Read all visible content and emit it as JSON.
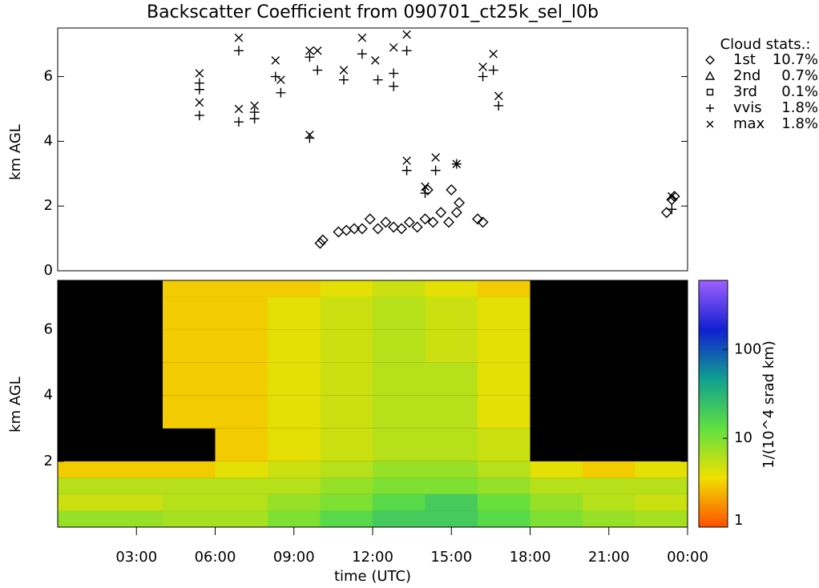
{
  "chart_data": [
    {
      "type": "scatter",
      "title": "Backscatter Coefficient from 090701_ct25k_sel_l0b",
      "ylabel": "km AGL",
      "xlim": [
        0,
        24
      ],
      "ylim": [
        0,
        7.5
      ],
      "yticks": [
        0,
        2,
        4,
        6
      ],
      "legend_title": "Cloud stats.:",
      "legend": "upper right",
      "color": "#000000",
      "series": [
        {
          "name": "1st",
          "marker": "diamond",
          "share": 10.7,
          "share_label": "10.7%",
          "x": [
            10,
            10.1,
            10.7,
            11,
            11.3,
            11.6,
            11.9,
            12.2,
            12.5,
            12.8,
            13.1,
            13.4,
            13.7,
            14,
            14.1,
            14.3,
            14.6,
            14.9,
            15,
            15.2,
            15.3,
            16,
            16.2,
            23.2,
            23.4,
            23.5
          ],
          "values": [
            0.85,
            0.95,
            1.2,
            1.25,
            1.3,
            1.3,
            1.6,
            1.3,
            1.5,
            1.35,
            1.3,
            1.5,
            1.35,
            1.6,
            2.5,
            1.5,
            1.8,
            1.5,
            2.5,
            1.8,
            2.1,
            1.6,
            1.5,
            1.8,
            2.2,
            2.3
          ]
        },
        {
          "name": "2nd",
          "marker": "triangle",
          "share": 0.7,
          "share_label": "0.7%",
          "x": [],
          "values": []
        },
        {
          "name": "3rd",
          "marker": "square",
          "share": 0.1,
          "share_label": "0.1%",
          "x": [],
          "values": []
        },
        {
          "name": "vvis",
          "marker": "plus",
          "share": 1.8,
          "share_label": "1.8%",
          "x": [
            5.4,
            5.4,
            5.4,
            6.9,
            6.9,
            7.5,
            7.5,
            8.3,
            8.5,
            9.6,
            9.6,
            9.9,
            10.9,
            11.6,
            12.2,
            12.8,
            12.8,
            13.3,
            13.3,
            14.0,
            14.4,
            15.2,
            16.2,
            16.6,
            16.8,
            23.4
          ],
          "values": [
            4.8,
            5.6,
            5.8,
            4.6,
            6.8,
            4.7,
            4.9,
            6,
            5.5,
            4.1,
            6.6,
            6.2,
            5.9,
            6.7,
            5.9,
            5.7,
            6.1,
            3.1,
            6.8,
            2.4,
            3.1,
            3.3,
            6.0,
            6.2,
            5.1,
            1.9
          ]
        },
        {
          "name": "max",
          "marker": "cross",
          "share": 1.8,
          "share_label": "1.8%",
          "x": [
            5.4,
            5.4,
            6.9,
            6.9,
            7.5,
            8.3,
            8.5,
            9.6,
            9.6,
            9.9,
            10.9,
            11.6,
            12.1,
            12.8,
            13.3,
            13.3,
            14.0,
            14.4,
            15.2,
            16.2,
            16.6,
            16.8,
            23.4
          ],
          "values": [
            6.1,
            5.2,
            7.2,
            5.0,
            5.1,
            6.5,
            5.9,
            6.8,
            4.2,
            6.8,
            6.2,
            7.2,
            6.5,
            6.9,
            7.3,
            3.4,
            2.6,
            3.5,
            3.3,
            6.3,
            6.7,
            5.4,
            2.3
          ]
        }
      ]
    },
    {
      "type": "heatmap",
      "ylabel": "km AGL",
      "xlabel": "time (UTC)",
      "xlim": [
        0,
        24
      ],
      "xticks": [
        {
          "value": 3,
          "label": "03:00"
        },
        {
          "value": 6,
          "label": "06:00"
        },
        {
          "value": 9,
          "label": "09:00"
        },
        {
          "value": 12,
          "label": "12:00"
        },
        {
          "value": 15,
          "label": "15:00"
        },
        {
          "value": 18,
          "label": "18:00"
        },
        {
          "value": 21,
          "label": "21:00"
        },
        {
          "value": 24,
          "label": "00:00"
        }
      ],
      "ylim": [
        0,
        7.5
      ],
      "yticks": [
        2,
        4,
        6
      ],
      "xbins": [
        0,
        2,
        4,
        6,
        8,
        10,
        12,
        14,
        16,
        18,
        20,
        22,
        24
      ],
      "ybins": [
        0,
        0.5,
        1,
        1.5,
        2,
        3,
        4,
        5,
        6,
        7,
        7.5
      ],
      "z": [
        [
          8,
          8,
          7,
          7,
          10,
          15,
          20,
          20,
          15,
          10,
          8,
          7
        ],
        [
          5,
          5,
          6,
          6,
          8,
          10,
          15,
          20,
          12,
          8,
          6,
          5
        ],
        [
          6,
          6,
          6,
          6,
          6,
          8,
          10,
          10,
          8,
          6,
          6,
          6
        ],
        [
          3,
          3,
          3,
          4,
          5,
          6,
          8,
          8,
          6,
          4,
          3,
          4
        ],
        [
          null,
          null,
          null,
          3,
          4,
          5,
          6,
          6,
          5,
          null,
          null,
          null
        ],
        [
          null,
          null,
          3,
          3,
          4,
          5,
          6,
          6,
          4,
          null,
          null,
          null
        ],
        [
          null,
          null,
          3,
          3,
          4,
          5,
          6,
          6,
          4,
          null,
          null,
          null
        ],
        [
          null,
          null,
          3,
          3,
          4,
          5,
          6,
          5,
          4,
          null,
          null,
          null
        ],
        [
          null,
          null,
          3,
          3,
          4,
          5,
          6,
          5,
          4,
          null,
          null,
          null
        ],
        [
          null,
          null,
          3,
          3,
          3,
          4,
          5,
          4,
          3,
          null,
          null,
          null
        ]
      ],
      "log_scale": true,
      "clim": [
        1,
        600
      ],
      "cticks": [
        1,
        10,
        100
      ],
      "clabel": "1/(10^4 srad km)",
      "colormap": [
        "#ff5000",
        "#f0e000",
        "#60e040",
        "#10a090",
        "#1020d0",
        "#a060ff"
      ],
      "no_data_color": "#000000"
    }
  ]
}
